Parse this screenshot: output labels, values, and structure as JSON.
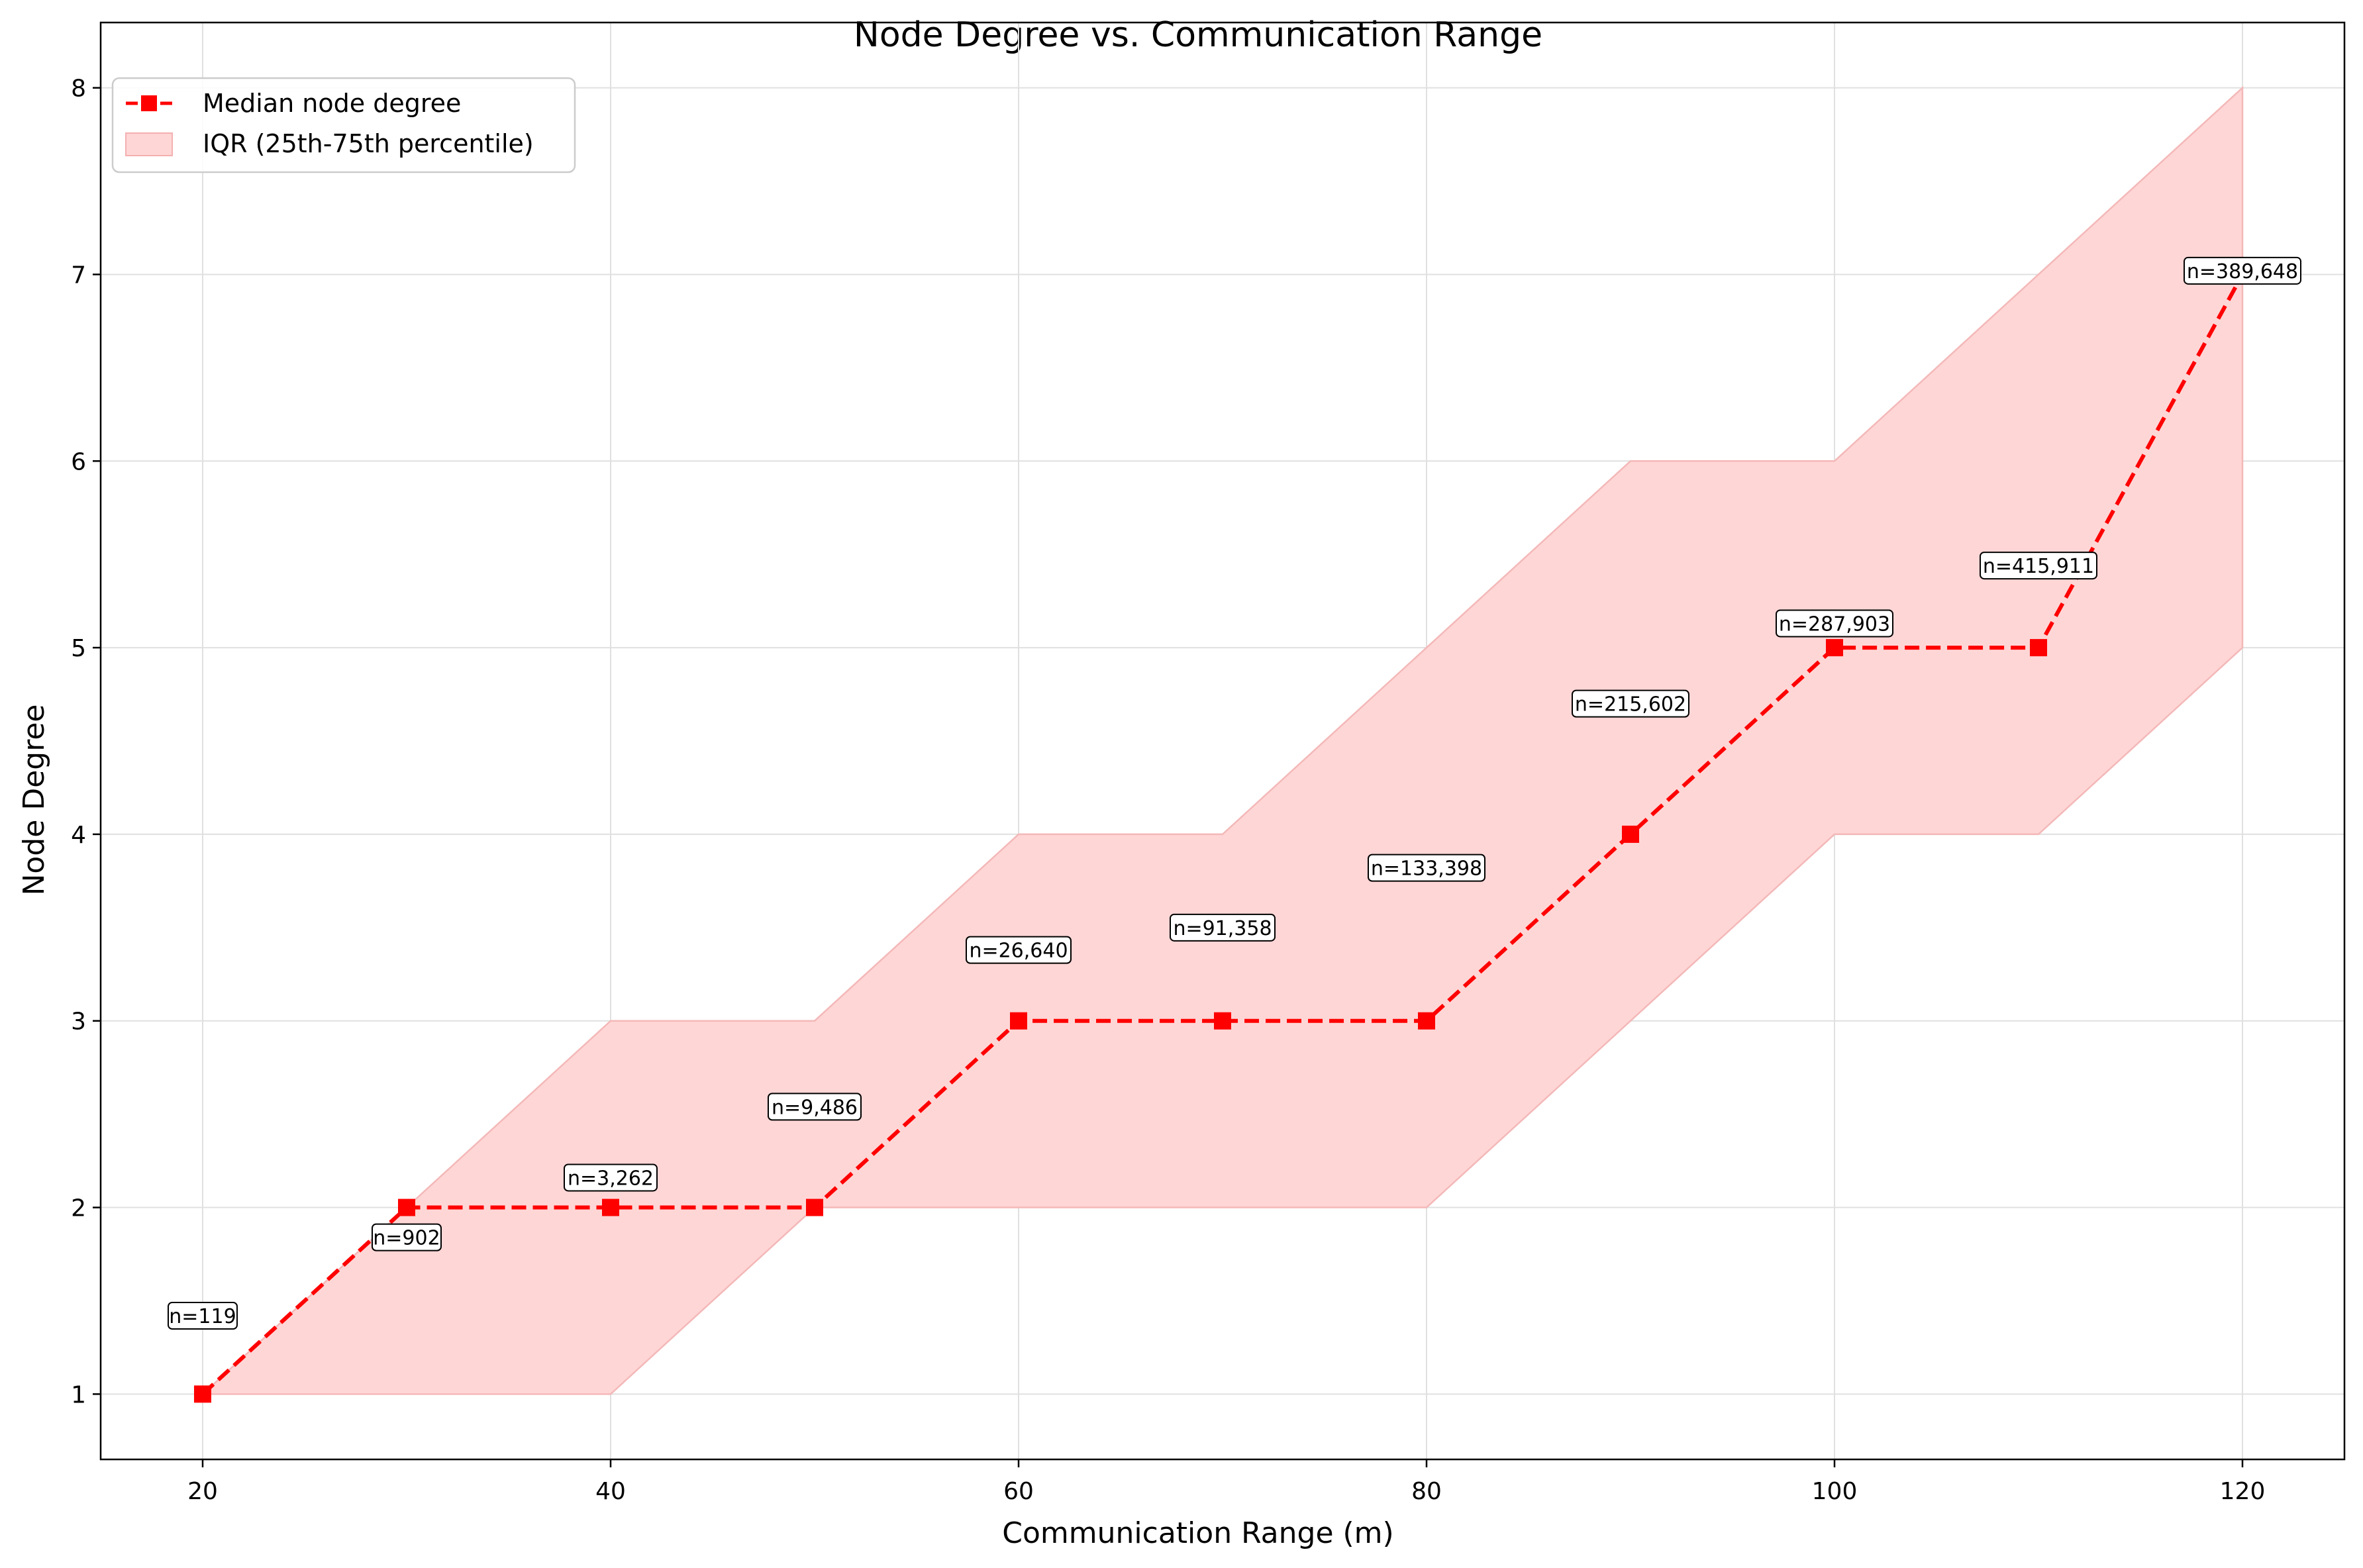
{
  "chart_data": {
    "type": "line",
    "title": "Node Degree vs. Communication Range",
    "xlabel": "Communication Range (m)",
    "ylabel": "Node Degree",
    "xlim": [
      15,
      125
    ],
    "ylim": [
      0.65,
      8.35
    ],
    "xticks": [
      20,
      40,
      60,
      80,
      100,
      120
    ],
    "yticks": [
      1,
      2,
      3,
      4,
      5,
      6,
      7,
      8
    ],
    "grid": true,
    "legend_position": "upper-left",
    "x": [
      20,
      30,
      40,
      50,
      60,
      70,
      80,
      90,
      100,
      110,
      120
    ],
    "series": [
      {
        "name": "Median node degree",
        "values": [
          1,
          2,
          2,
          2,
          3,
          3,
          3,
          4,
          5,
          5,
          7
        ],
        "color": "#ff0000",
        "style": "dashed",
        "marker": "square"
      }
    ],
    "band": {
      "name": "IQR (25th-75th percentile)",
      "lower": [
        1,
        1,
        1,
        2,
        2,
        2,
        2,
        3,
        4,
        4,
        5
      ],
      "upper": [
        1,
        2,
        3,
        3,
        4,
        4,
        5,
        6,
        6,
        7,
        8
      ],
      "color": "#ffb3b3"
    },
    "annotations": [
      {
        "x": 20,
        "y": 1.42,
        "text": "n=119"
      },
      {
        "x": 30,
        "y": 1.84,
        "text": "n=902"
      },
      {
        "x": 40,
        "y": 2.16,
        "text": "n=3,262"
      },
      {
        "x": 50,
        "y": 2.54,
        "text": "n=9,486"
      },
      {
        "x": 60,
        "y": 3.38,
        "text": "n=26,640"
      },
      {
        "x": 70,
        "y": 3.5,
        "text": "n=91,358"
      },
      {
        "x": 80,
        "y": 3.82,
        "text": "n=133,398"
      },
      {
        "x": 90,
        "y": 4.7,
        "text": "n=215,602"
      },
      {
        "x": 100,
        "y": 5.13,
        "text": "n=287,903"
      },
      {
        "x": 110,
        "y": 5.44,
        "text": "n=415,911"
      },
      {
        "x": 120,
        "y": 7.02,
        "text": "n=389,648"
      }
    ]
  }
}
